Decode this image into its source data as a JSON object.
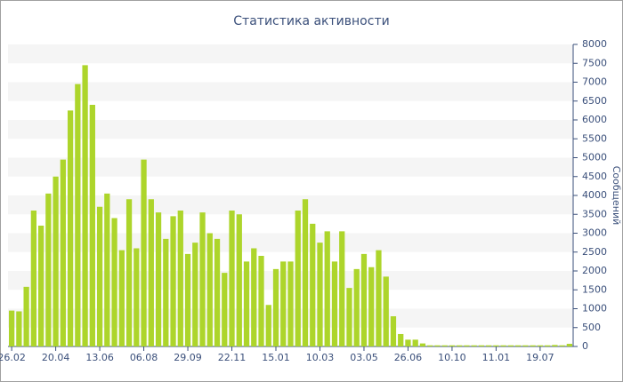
{
  "chart_data": {
    "type": "bar",
    "title": "Статистика активности",
    "y_label": "Сообщений",
    "categories": [
      "26.02",
      null,
      null,
      null,
      null,
      null,
      "20.04",
      null,
      null,
      null,
      null,
      null,
      "13.06",
      null,
      null,
      null,
      null,
      null,
      "06.08",
      null,
      null,
      null,
      null,
      null,
      "29.09",
      null,
      null,
      null,
      null,
      null,
      "22.11",
      null,
      null,
      null,
      null,
      null,
      "15.01",
      null,
      null,
      null,
      null,
      null,
      "10.03",
      null,
      null,
      null,
      null,
      null,
      "03.05",
      null,
      null,
      null,
      null,
      null,
      "26.06",
      null,
      null,
      null,
      null,
      null,
      "10.10",
      null,
      null,
      null,
      null,
      null,
      "11.01",
      null,
      null,
      null,
      null,
      null,
      "19.07",
      null,
      null,
      null,
      null
    ],
    "values": [
      950,
      930,
      1580,
      3600,
      3200,
      4050,
      4500,
      4950,
      6250,
      6950,
      7450,
      6400,
      3700,
      4050,
      3400,
      2550,
      3900,
      2600,
      4950,
      3900,
      3550,
      2850,
      3450,
      3600,
      2450,
      2750,
      3550,
      3000,
      2850,
      1950,
      3600,
      3500,
      2250,
      2600,
      2400,
      1100,
      2050,
      2250,
      2250,
      3600,
      3900,
      3250,
      2750,
      3050,
      2250,
      3050,
      1550,
      2050,
      2450,
      2100,
      2550,
      1850,
      800,
      330,
      180,
      180,
      80,
      30,
      30,
      30,
      30,
      30,
      30,
      30,
      30,
      30,
      30,
      30,
      30,
      30,
      30,
      30,
      30,
      30,
      40,
      30,
      70
    ],
    "color": "#add52b",
    "ylim": [
      0,
      8000
    ],
    "yticks": [
      0,
      500,
      1000,
      1500,
      2000,
      2500,
      3000,
      3500,
      4000,
      4500,
      5000,
      5500,
      6000,
      6500,
      7000,
      7500,
      8000
    ],
    "bands": true
  }
}
